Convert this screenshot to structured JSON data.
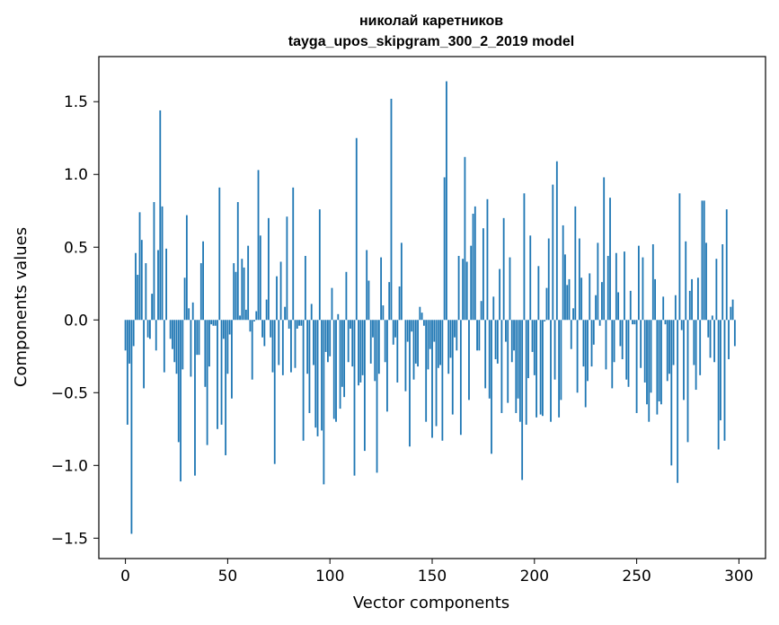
{
  "chart_data": {
    "type": "bar",
    "title": "николай каретников",
    "subtitle": "tayga_upos_skipgram_300_2_2019 model",
    "xlabel": "Vector components",
    "ylabel": "Components values",
    "xlim": [
      -13,
      313
    ],
    "ylim": [
      -1.64,
      1.81
    ],
    "xticks": [
      0,
      50,
      100,
      150,
      200,
      250,
      300
    ],
    "yticks": [
      -1.5,
      -1.0,
      -0.5,
      0.0,
      0.5,
      1.0,
      1.5
    ],
    "ytick_labels": [
      "−1.5",
      "−1.0",
      "−0.5",
      "0.0",
      "0.5",
      "1.0",
      "1.5"
    ],
    "bar_color": "#1f77b4",
    "grid": false,
    "values": [
      -0.21,
      -0.72,
      -0.3,
      -1.47,
      -0.18,
      0.46,
      0.31,
      0.74,
      0.55,
      -0.47,
      0.39,
      -0.12,
      -0.13,
      0.18,
      0.81,
      -0.21,
      0.48,
      1.44,
      0.78,
      -0.36,
      0.49,
      0.0,
      -0.13,
      -0.2,
      -0.29,
      -0.37,
      -0.84,
      -1.11,
      -0.34,
      0.29,
      0.72,
      0.08,
      -0.39,
      0.12,
      -1.07,
      -0.24,
      -0.24,
      0.39,
      0.54,
      -0.46,
      -0.86,
      -0.32,
      -0.03,
      -0.04,
      -0.04,
      -0.75,
      0.91,
      -0.72,
      -0.13,
      -0.93,
      -0.37,
      -0.1,
      -0.54,
      0.39,
      0.33,
      0.81,
      0.03,
      0.42,
      0.36,
      0.07,
      0.51,
      -0.08,
      -0.41,
      -0.01,
      0.06,
      1.03,
      0.58,
      -0.12,
      -0.18,
      0.14,
      0.7,
      -0.12,
      -0.36,
      -0.99,
      0.3,
      -0.31,
      0.4,
      -0.38,
      0.09,
      0.71,
      -0.06,
      -0.36,
      0.91,
      -0.33,
      -0.06,
      -0.04,
      -0.04,
      -0.83,
      0.44,
      -0.37,
      -0.64,
      0.11,
      -0.31,
      -0.74,
      -0.8,
      0.76,
      -0.76,
      -1.13,
      -0.22,
      -0.29,
      -0.25,
      0.22,
      -0.68,
      -0.7,
      0.04,
      -0.61,
      -0.46,
      -0.53,
      0.33,
      -0.29,
      -0.06,
      -0.32,
      -1.07,
      1.25,
      -0.45,
      -0.43,
      -0.38,
      -0.9,
      0.48,
      0.27,
      -0.3,
      -0.12,
      -0.42,
      -1.05,
      -0.37,
      0.43,
      0.1,
      -0.29,
      -0.63,
      0.26,
      1.52,
      -0.17,
      -0.12,
      -0.43,
      0.23,
      0.53,
      0.0,
      -0.49,
      -0.15,
      -0.87,
      -0.08,
      -0.41,
      -0.3,
      -0.32,
      0.09,
      0.05,
      -0.04,
      -0.7,
      -0.34,
      -0.2,
      -0.81,
      -0.15,
      -0.73,
      -0.33,
      -0.31,
      -0.83,
      0.98,
      1.64,
      -0.37,
      -0.26,
      -0.65,
      -0.12,
      -0.21,
      0.44,
      -0.79,
      0.42,
      1.12,
      0.4,
      -0.55,
      0.51,
      0.73,
      0.78,
      -0.21,
      -0.21,
      0.13,
      0.63,
      -0.47,
      0.83,
      -0.54,
      -0.92,
      0.16,
      -0.27,
      -0.3,
      0.35,
      -0.64,
      0.7,
      -0.15,
      -0.57,
      0.43,
      -0.29,
      -0.21,
      -0.64,
      -0.54,
      -0.7,
      -1.1,
      0.87,
      -0.72,
      -0.4,
      0.58,
      -0.22,
      -0.38,
      -0.67,
      0.37,
      -0.65,
      -0.66,
      -0.01,
      0.22,
      0.56,
      -0.7,
      0.93,
      -0.41,
      1.09,
      -0.67,
      -0.55,
      0.65,
      0.45,
      0.24,
      0.28,
      -0.2,
      0.08,
      0.78,
      -0.5,
      0.56,
      0.29,
      -0.32,
      -0.6,
      -0.42,
      0.32,
      -0.32,
      -0.17,
      0.17,
      0.53,
      -0.04,
      0.26,
      0.98,
      -0.34,
      0.44,
      0.84,
      -0.47,
      -0.29,
      0.46,
      0.19,
      -0.18,
      -0.27,
      0.47,
      -0.41,
      -0.46,
      0.2,
      -0.03,
      -0.03,
      -0.64,
      0.51,
      -0.33,
      0.43,
      -0.43,
      -0.58,
      -0.7,
      -0.5,
      0.52,
      0.28,
      -0.65,
      -0.56,
      -0.58,
      0.16,
      -0.03,
      -0.42,
      -0.37,
      -1.0,
      -0.31,
      0.17,
      -1.12,
      0.87,
      -0.07,
      -0.55,
      0.54,
      -0.84,
      0.2,
      0.28,
      -0.31,
      -0.48,
      0.29,
      -0.38,
      0.82,
      0.82,
      0.53,
      -0.12,
      -0.26,
      0.03,
      -0.29,
      0.42,
      -0.89,
      -0.69,
      0.52,
      -0.83,
      0.76,
      -0.27,
      0.09,
      0.14,
      -0.18
    ]
  }
}
